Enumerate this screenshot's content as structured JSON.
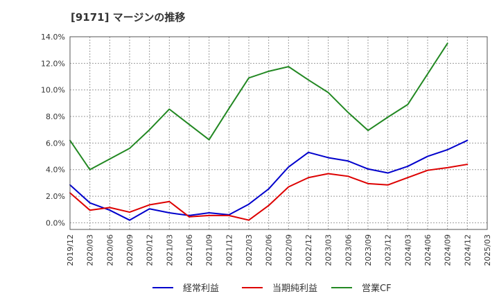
{
  "chart_data": {
    "type": "line",
    "title": "[9171]  マージンの推移",
    "xlabel": "",
    "ylabel": "",
    "ylim": [
      -0.5,
      14.0
    ],
    "y_ticks": [
      "0.0%",
      "2.0%",
      "4.0%",
      "6.0%",
      "8.0%",
      "10.0%",
      "12.0%",
      "14.0%"
    ],
    "grid": true,
    "legend_position": "bottom",
    "categories": [
      "2019/12",
      "2020/03",
      "2020/06",
      "2020/09",
      "2020/12",
      "2021/03",
      "2021/06",
      "2021/09",
      "2021/12",
      "2022/03",
      "2022/06",
      "2022/09",
      "2022/12",
      "2023/03",
      "2023/06",
      "2023/09",
      "2023/12",
      "2024/03",
      "2024/06",
      "2024/09",
      "2024/12",
      "2025/03"
    ],
    "series": [
      {
        "name": "経常利益",
        "color": "#0000cc",
        "values": [
          2.85,
          1.5,
          0.95,
          0.2,
          1.05,
          0.75,
          0.55,
          0.75,
          0.6,
          1.4,
          2.55,
          4.2,
          5.3,
          4.9,
          4.65,
          4.05,
          3.75,
          4.25,
          5.0,
          5.5,
          6.2,
          null
        ]
      },
      {
        "name": "当期純利益",
        "color": "#dd0000",
        "values": [
          2.25,
          0.95,
          1.15,
          0.8,
          1.35,
          1.6,
          0.45,
          0.55,
          0.55,
          0.2,
          1.3,
          2.7,
          3.4,
          3.7,
          3.5,
          2.95,
          2.85,
          3.4,
          3.95,
          4.15,
          4.4,
          null
        ]
      },
      {
        "name": "営業CF",
        "color": "#228822",
        "values": [
          6.2,
          4.0,
          4.8,
          5.6,
          7.0,
          8.55,
          7.4,
          6.25,
          8.6,
          10.9,
          11.4,
          11.75,
          10.75,
          9.8,
          8.3,
          6.95,
          7.95,
          8.9,
          11.2,
          13.5,
          null,
          null
        ]
      }
    ]
  }
}
